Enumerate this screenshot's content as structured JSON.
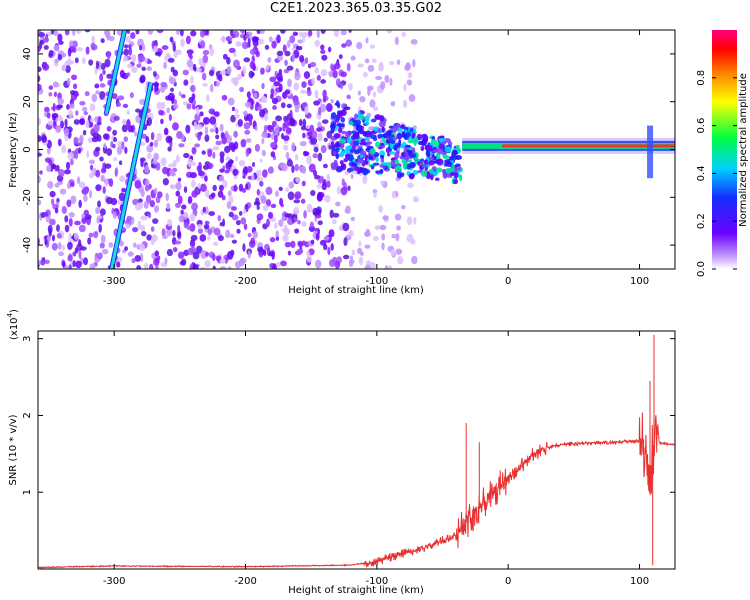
{
  "title": "C2E1.2023.365.03.35.G02",
  "colors": {
    "axes": "#000000",
    "snr_line": "#e83030",
    "spectrogram_noise": "#6a00ff",
    "spectrogram_trace": "#ff2a2a",
    "tone_line": "#20d8d8"
  },
  "chart_data": [
    {
      "type": "heatmap",
      "title": "C2E1.2023.365.03.35.G02",
      "xlabel": "Height of straight line (km)",
      "ylabel": "Frequency (Hz)",
      "xlim": [
        -358,
        127
      ],
      "ylim": [
        -50,
        50
      ],
      "x_ticks": [
        -300,
        -200,
        -100,
        0,
        100
      ],
      "y_ticks": [
        -40,
        -20,
        0,
        20,
        40
      ],
      "colorbar": {
        "label": "Normalized spectral amplitude",
        "range": [
          0.0,
          1.0
        ],
        "ticks": [
          "0.0",
          "0.2",
          "0.4",
          "0.6",
          "0.8"
        ],
        "colormap": "rainbow (violet-blue-cyan-green-yellow-red-magenta)"
      },
      "features": {
        "noise_region": {
          "x_range": [
            -358,
            -100
          ],
          "freq_range": [
            -50,
            50
          ],
          "amplitude": 0.15
        },
        "scatter_region": {
          "x_range": [
            -135,
            -35
          ],
          "freq_range": [
            -18,
            12
          ],
          "amplitude": 0.3
        },
        "carrier_line": {
          "x_range": [
            -35,
            127
          ],
          "freq": 1.5,
          "amplitude": 0.9
        },
        "drifting_tones": [
          {
            "x_at_top": -292,
            "x_at_bottom": -306,
            "freq_top": 50,
            "freq_bottom": 15
          },
          {
            "x_at_top": -272,
            "x_at_bottom": -302,
            "freq_top": 28,
            "freq_bottom": -50
          }
        ]
      }
    },
    {
      "type": "line",
      "xlabel": "Height of straight line (km)",
      "ylabel": "SNR (10 * v/v)",
      "y_scale_label": "(x10",
      "y_scale_exp": "4",
      "y_scale_close": ")",
      "xlim": [
        -358,
        127
      ],
      "ylim": [
        0,
        3.1
      ],
      "x_ticks": [
        -300,
        -200,
        -100,
        0,
        100
      ],
      "y_ticks": [
        1,
        2,
        3
      ],
      "series": [
        {
          "x": [
            -358,
            -300,
            -200,
            -120,
            -100,
            -80,
            -60,
            -40,
            -30,
            -20,
            -10,
            0,
            10,
            20,
            30,
            40,
            60,
            80,
            100,
            105,
            108,
            110,
            112,
            115,
            120,
            127
          ],
          "y": [
            0.02,
            0.04,
            0.03,
            0.05,
            0.1,
            0.2,
            0.3,
            0.45,
            0.65,
            0.85,
            1.0,
            1.15,
            1.35,
            1.5,
            1.58,
            1.62,
            1.64,
            1.65,
            1.67,
            1.6,
            1.1,
            1.5,
            1.8,
            1.65,
            1.63,
            1.62
          ],
          "spikes": [
            [
              -32,
              1.9
            ],
            [
              -22,
              1.65
            ],
            [
              108,
              2.45
            ],
            [
              111,
              3.05
            ]
          ]
        }
      ]
    }
  ]
}
